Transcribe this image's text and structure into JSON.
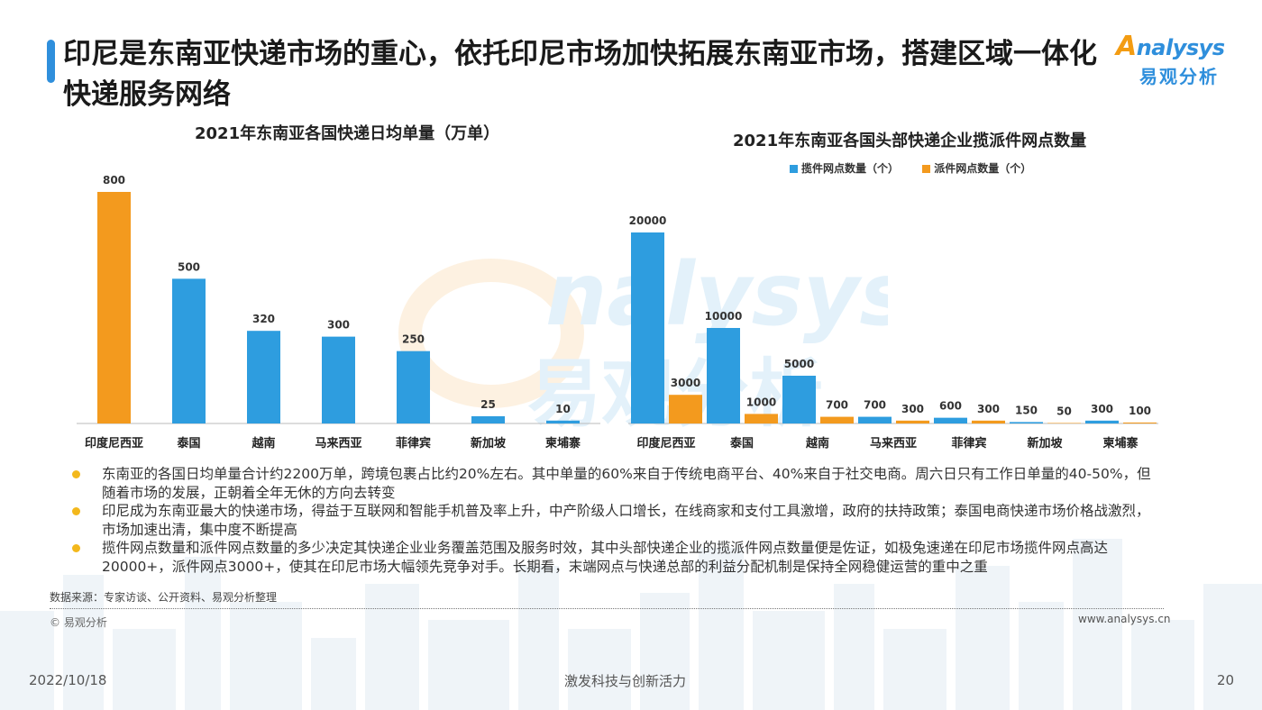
{
  "header": {
    "title": "印尼是东南亚快递市场的重心，依托印尼市场加快拓展东南亚市场，搭建区域一体化快递服务网络",
    "logo_en": "nalysys",
    "logo_en_initial": "A",
    "logo_cn": "易观分析"
  },
  "chart_data": [
    {
      "type": "bar",
      "title": "2021年东南亚各国快递日均单量（万单）",
      "categories": [
        "印度尼西亚",
        "泰国",
        "越南",
        "马来西亚",
        "菲律宾",
        "新加坡",
        "柬埔寨"
      ],
      "values": [
        800,
        500,
        320,
        300,
        250,
        25,
        10
      ],
      "ylim": [
        0,
        800
      ],
      "grid": false,
      "colors": {
        "highlight": "#f39a1e",
        "default": "#2e9ddf"
      }
    },
    {
      "type": "bar",
      "title": "2021年东南亚各国头部快递企业揽派件网点数量",
      "categories": [
        "印度尼西亚",
        "泰国",
        "越南",
        "马来西亚",
        "菲律宾",
        "新加坡",
        "柬埔寨"
      ],
      "series": [
        {
          "name": "揽件网点数量（个）",
          "values": [
            20000,
            10000,
            5000,
            700,
            600,
            150,
            300
          ],
          "color": "#2e9ddf"
        },
        {
          "name": "派件网点数量（个）",
          "values": [
            3000,
            1000,
            700,
            300,
            300,
            50,
            100
          ],
          "color": "#f39a1e"
        }
      ],
      "ylim": [
        0,
        20000
      ],
      "legend": "top-center",
      "grid": false
    }
  ],
  "bullets": [
    "东南亚的各国日均单量合计约2200万单，跨境包裹占比约20%左右。其中单量的60%来自于传统电商平台、40%来自于社交电商。周六日只有工作日单量的40-50%，但随着市场的发展，正朝着全年无休的方向去转变",
    "印尼成为东南亚最大的快递市场，得益于互联网和智能手机普及率上升，中产阶级人口增长，在线商家和支付工具激增，政府的扶持政策；泰国电商快递市场价格战激烈，市场加速出清，集中度不断提高",
    "揽件网点数量和派件网点数量的多少决定其快递企业业务覆盖范围及服务时效，其中头部快递企业的揽派件网点数量便是佐证，如极兔速递在印尼市场揽件网点高达20000+，派件网点3000+，使其在印尼市场大幅领先竞争对手。长期看，末端网点与快递总部的利益分配机制是保持全网稳健运营的重中之重"
  ],
  "footer": {
    "source": "数据来源：专家访谈、公开资料、易观分析整理",
    "copyright": "© 易观分析",
    "website": "www.analysys.cn",
    "date": "2022/10/18",
    "slogan": "激发科技与创新活力",
    "page": "20"
  },
  "watermark": {
    "text_en": "nalysys",
    "text_cn": "易观分析"
  }
}
